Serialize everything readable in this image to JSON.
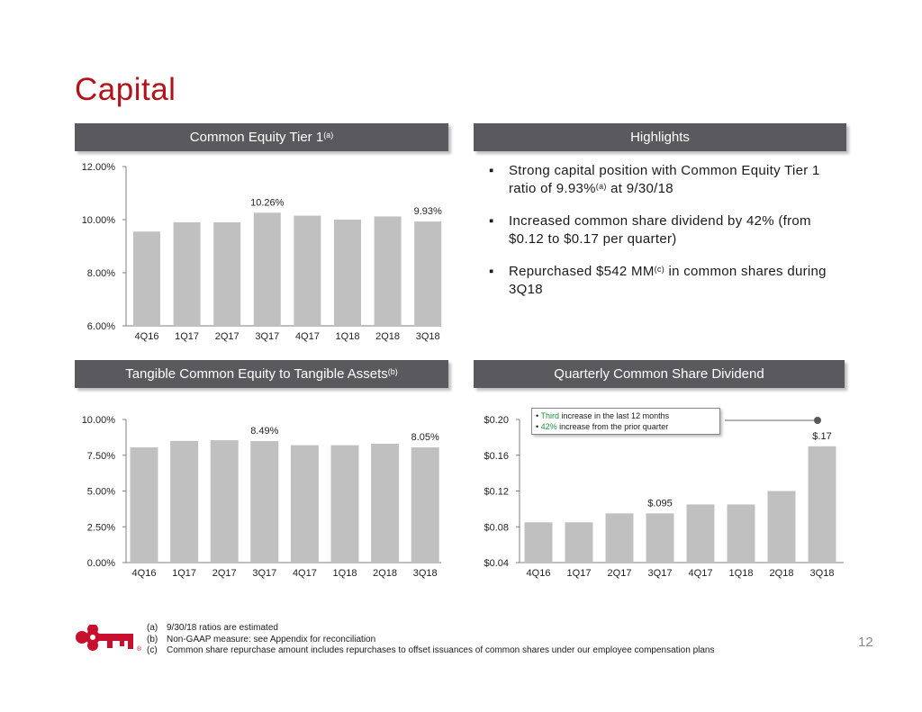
{
  "page": {
    "title": "Capital",
    "page_number": "12"
  },
  "headers": {
    "cet1": {
      "text": "Common Equity Tier 1",
      "sup": "(a)"
    },
    "highlights": {
      "text": "Highlights"
    },
    "tce": {
      "text": "Tangible Common Equity to Tangible Assets",
      "sup": "(b)"
    },
    "dividend": {
      "text": "Quarterly Common Share Dividend"
    }
  },
  "highlights": {
    "bullet_char": "▪",
    "items": [
      {
        "pre": "Strong capital position with Common Equity Tier 1 ratio of 9.93%",
        "sup": "(a)",
        "post": " at 9/30/18"
      },
      {
        "pre": "Increased common share dividend by 42% (from $0.12 to $0.17 per quarter)",
        "sup": "",
        "post": ""
      },
      {
        "pre": "Repurchased $542 MM",
        "sup": "(c)",
        "post": " in common shares during 3Q18"
      }
    ]
  },
  "callout": {
    "line1_pre": "• ",
    "line1_green": "Third",
    "line1_post": " increase in the last 12 months",
    "line2_pre": "• ",
    "line2_green": "42%",
    "line2_post": " increase from the prior quarter"
  },
  "footnotes": [
    {
      "tag": "(a)",
      "text": "9/30/18 ratios are estimated"
    },
    {
      "tag": "(b)",
      "text": "Non-GAAP measure: see Appendix for reconciliation"
    },
    {
      "tag": "(c)",
      "text": "Common share repurchase amount includes repurchases to offset issuances of common shares under our employee compensation plans"
    }
  ],
  "colors": {
    "title": "#b3121b",
    "header_bg": "#5a5a5e",
    "bar": "#c0c0c0",
    "axis": "#7f7f7f",
    "callout_green": "#1f8f3a",
    "logo": "#c8102e"
  },
  "icons": {
    "logo": "key-logo-icon"
  },
  "chart_data": [
    {
      "id": "cet1",
      "type": "bar",
      "categories": [
        "4Q16",
        "1Q17",
        "2Q17",
        "3Q17",
        "4Q17",
        "1Q18",
        "2Q18",
        "3Q18"
      ],
      "values": [
        9.55,
        9.9,
        9.9,
        10.26,
        10.15,
        10.0,
        10.12,
        9.93
      ],
      "ylim": [
        6,
        12
      ],
      "yticks": [
        "12.00%",
        "10.00%",
        "8.00%",
        "6.00%"
      ],
      "data_labels": {
        "3": "10.26%",
        "7": "9.93%"
      }
    },
    {
      "id": "tce",
      "type": "bar",
      "categories": [
        "4Q16",
        "1Q17",
        "2Q17",
        "3Q17",
        "4Q17",
        "1Q18",
        "2Q18",
        "3Q18"
      ],
      "values": [
        8.05,
        8.5,
        8.55,
        8.49,
        8.2,
        8.2,
        8.3,
        8.05
      ],
      "ylim": [
        0,
        10
      ],
      "yticks": [
        "10.00%",
        "7.50%",
        "5.00%",
        "2.50%",
        "0.00%"
      ],
      "data_labels": {
        "3": "8.49%",
        "7": "8.05%"
      }
    },
    {
      "id": "dividend",
      "type": "bar",
      "categories": [
        "4Q16",
        "1Q17",
        "2Q17",
        "3Q17",
        "4Q17",
        "1Q18",
        "2Q18",
        "3Q18"
      ],
      "values": [
        0.085,
        0.085,
        0.095,
        0.095,
        0.105,
        0.105,
        0.12,
        0.17
      ],
      "ylim": [
        0.04,
        0.2
      ],
      "yticks": [
        "$0.20",
        "$0.16",
        "$0.12",
        "$0.08",
        "$0.04"
      ],
      "data_labels": {
        "3": "$.095",
        "7": "$.17"
      }
    }
  ]
}
